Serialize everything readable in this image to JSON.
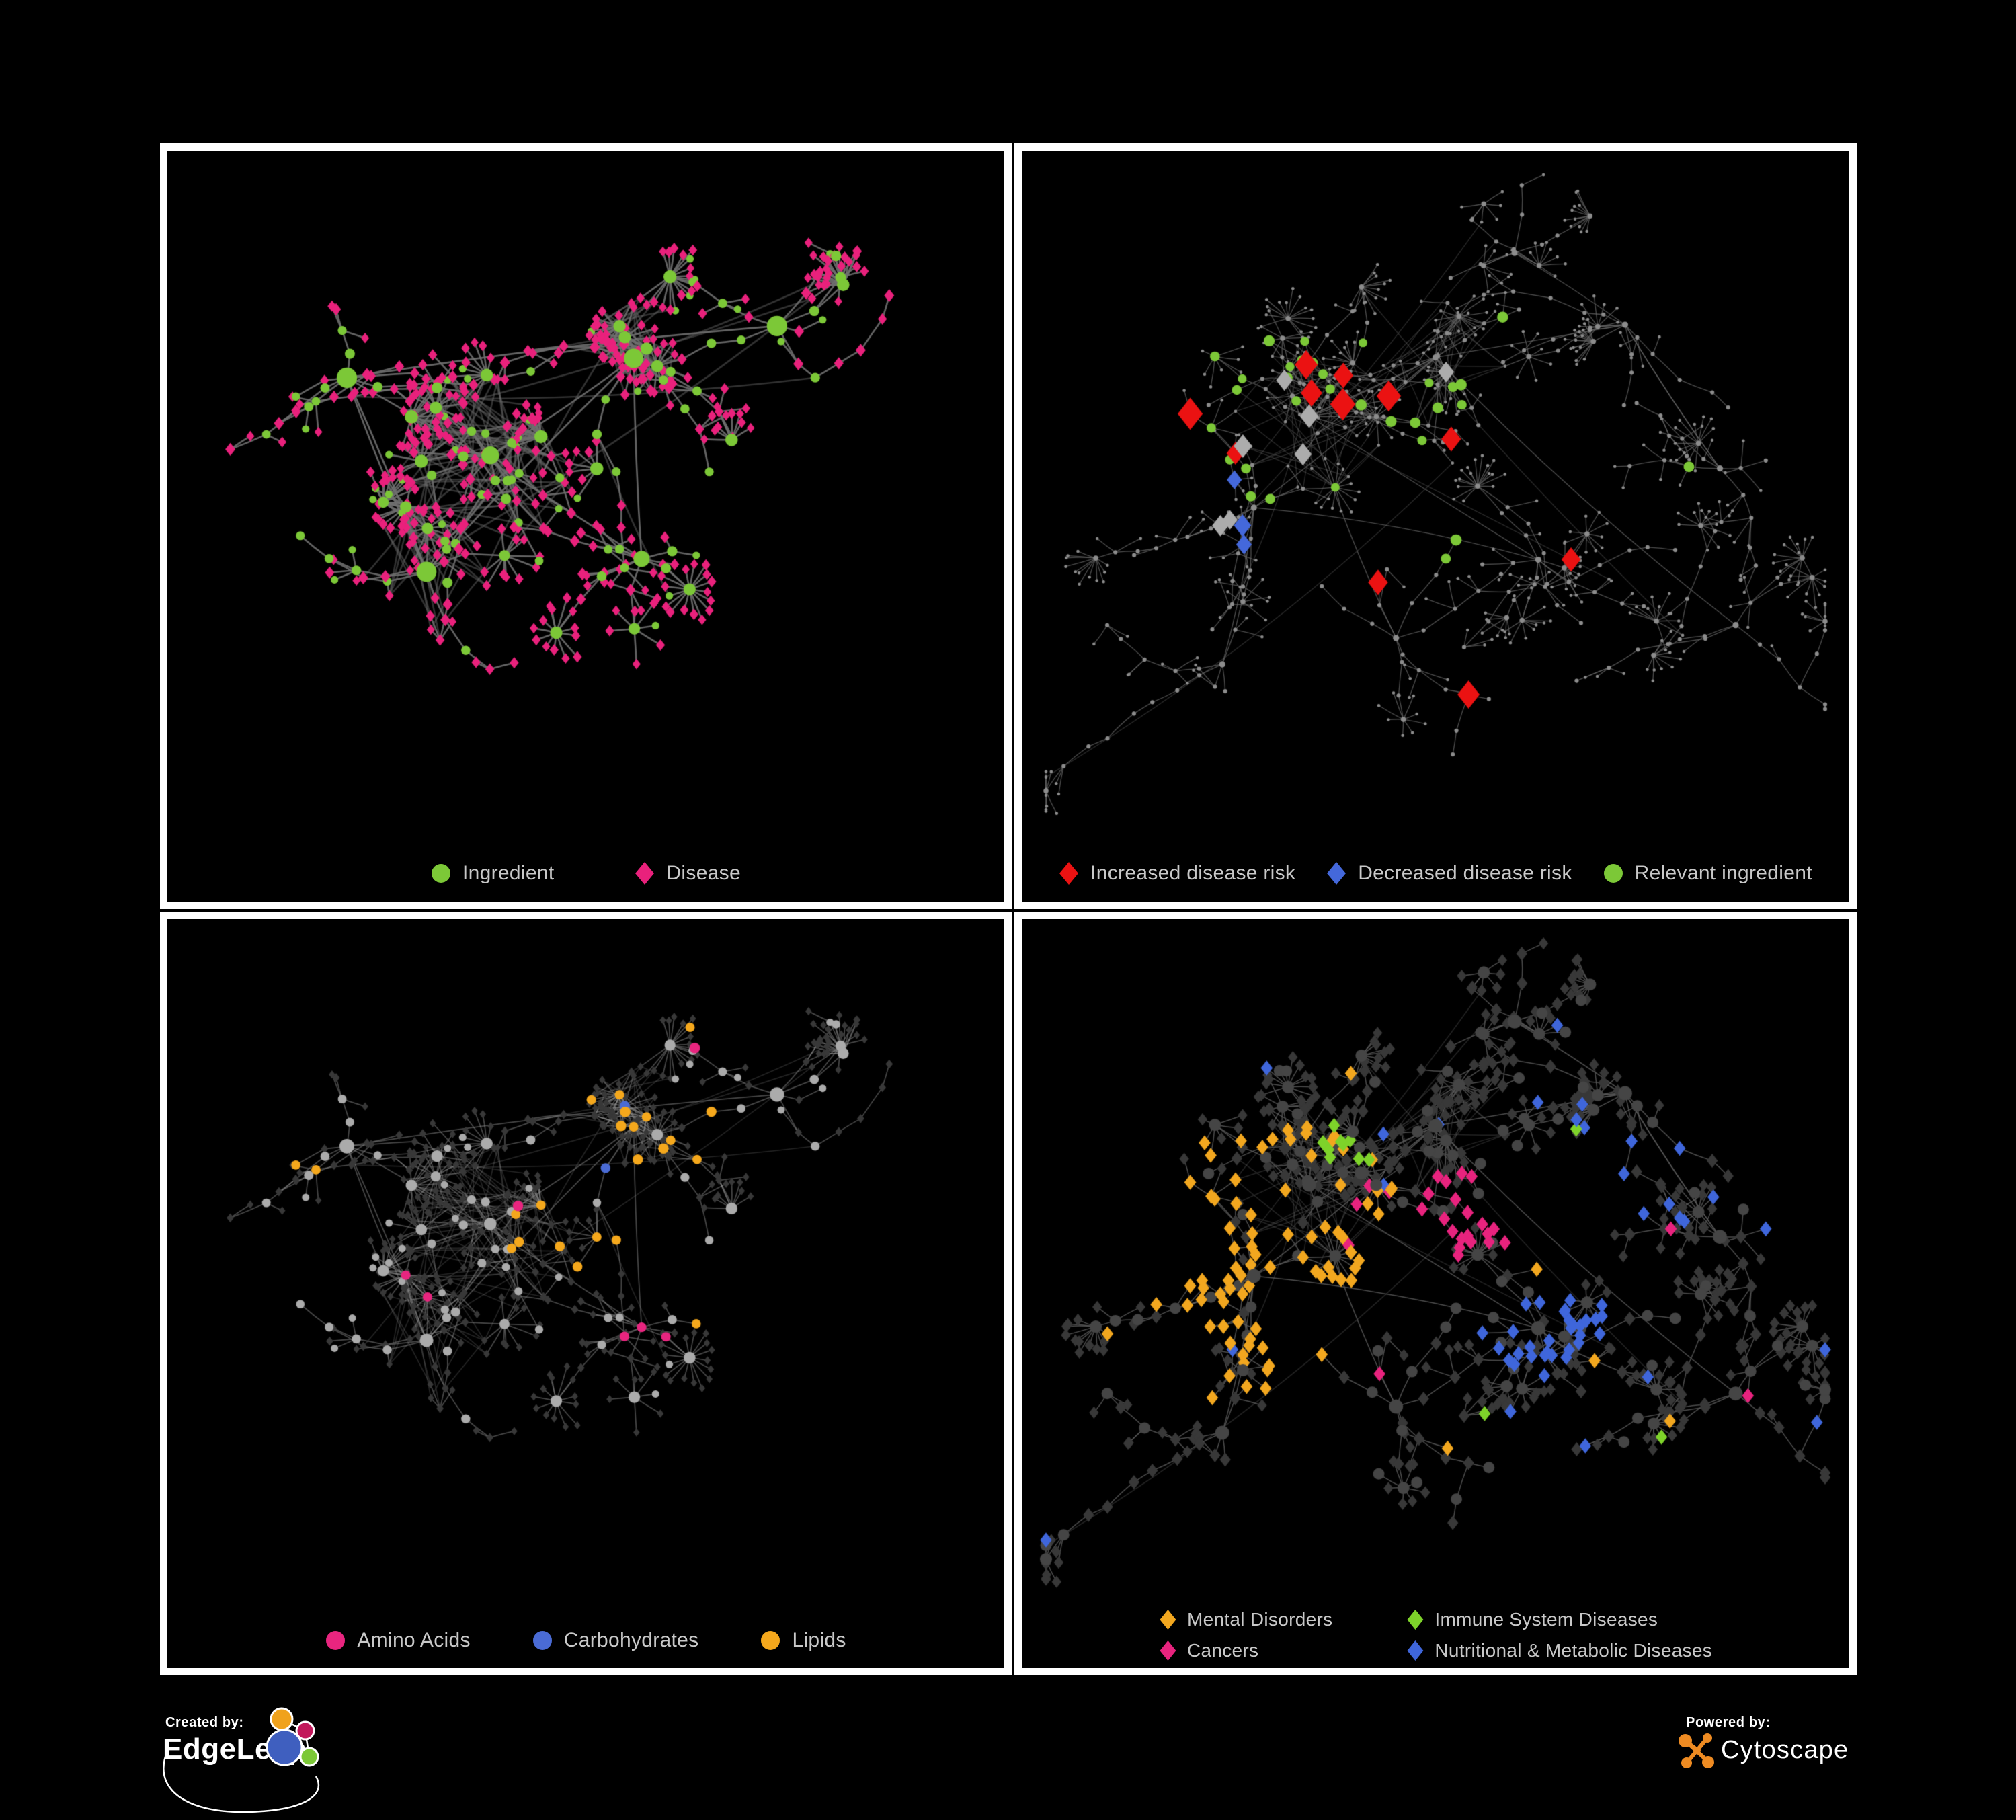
{
  "figure": {
    "background": "#000000",
    "panel_border_color": "#FFFFFF",
    "legend_text_color": "#C8C8C8"
  },
  "panels": [
    {
      "id": "ingredient-disease",
      "position": "top-left",
      "legend": [
        {
          "label": "Ingredient",
          "shape": "circle",
          "color": "#7CC837"
        },
        {
          "label": "Disease",
          "shape": "diamond",
          "color": "#E9217C"
        }
      ],
      "network": {
        "type": "left",
        "seed": 20240601,
        "approx_nodes": 580,
        "edge_color": "#6F6F6F",
        "edge_width": 2.6
      }
    },
    {
      "id": "disease-risk",
      "position": "top-right",
      "legend": [
        {
          "label": "Increased disease risk",
          "shape": "diamond",
          "color": "#EB1212"
        },
        {
          "label": "Decreased disease risk",
          "shape": "diamond",
          "color": "#4468DB"
        },
        {
          "label": "Relevant ingredient",
          "shape": "circle",
          "color": "#7CC837"
        }
      ],
      "network": {
        "type": "right",
        "seed": 777003,
        "approx_nodes": 840,
        "edge_color": "#666666",
        "edge_width": 1.35,
        "base_node_color": "#8C8C8C",
        "neutral_diamond_color": "#ACACAC"
      }
    },
    {
      "id": "nutrient-classes",
      "position": "bottom-left",
      "legend": [
        {
          "label": "Amino Acids",
          "shape": "circle",
          "color": "#E8257F"
        },
        {
          "label": "Carbohydrates",
          "shape": "circle",
          "color": "#4A6BD5"
        },
        {
          "label": "Lipids",
          "shape": "circle",
          "color": "#F5A81C"
        }
      ],
      "network": {
        "type": "left",
        "seed": 20240601,
        "approx_nodes": 580,
        "edge_color": "#8F8F8F",
        "edge_width": 1.7,
        "base_circle_color": "#ABABAB",
        "base_diamond_color": "#383838"
      }
    },
    {
      "id": "disease-classes",
      "position": "bottom-right",
      "legend": [
        {
          "label": "Mental Disorders",
          "shape": "diamond",
          "color": "#F2A71F"
        },
        {
          "label": "Immune System Diseases",
          "shape": "diamond",
          "color": "#7ED32A"
        },
        {
          "label": "Cancers",
          "shape": "diamond",
          "color": "#E8237E"
        },
        {
          "label": "Nutritional & Metabolic Diseases",
          "shape": "diamond",
          "color": "#3F66DB"
        }
      ],
      "network": {
        "type": "right",
        "seed": 777003,
        "approx_nodes": 840,
        "edge_color": "#5A5A5A",
        "edge_width": 1.5,
        "base_diamond_color": "#383838",
        "base_circle_color": "#454545"
      }
    }
  ],
  "footer": {
    "created_by_label": "Created by:",
    "created_by_brand": "EdgeLeap",
    "powered_by_label": "Powered by:",
    "powered_by_brand": "Cytoscape",
    "cytoscape_brand_color": "#EE8B22",
    "edgeleap_node_colors": [
      "#F0A21C",
      "#C2185B",
      "#3F5FBF",
      "#7CC837"
    ]
  }
}
